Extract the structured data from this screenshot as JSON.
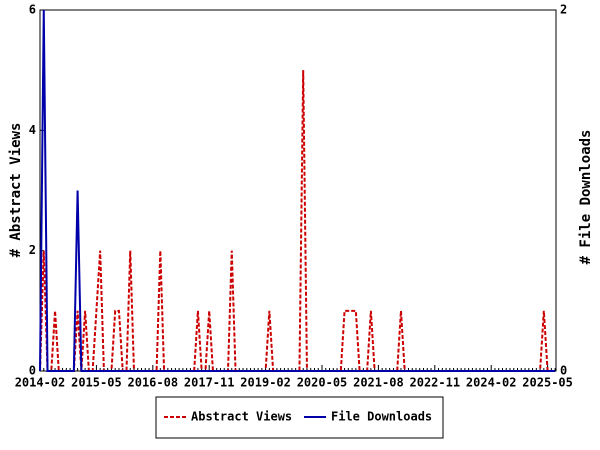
{
  "chart_data": {
    "type": "line",
    "y_label": "# Abstract Views",
    "y2_label": "# File Downloads",
    "categories": [
      "2014-02",
      null,
      null,
      null,
      null,
      null,
      null,
      null,
      null,
      null,
      null,
      null,
      null,
      null,
      null,
      "2015-05",
      null,
      null,
      null,
      null,
      null,
      null,
      null,
      null,
      null,
      null,
      null,
      null,
      null,
      null,
      "2016-08",
      null,
      null,
      null,
      null,
      null,
      null,
      null,
      null,
      null,
      null,
      null,
      null,
      null,
      null,
      "2017-11",
      null,
      null,
      null,
      null,
      null,
      null,
      null,
      null,
      null,
      null,
      null,
      null,
      null,
      null,
      "2019-02",
      null,
      null,
      null,
      null,
      null,
      null,
      null,
      null,
      null,
      null,
      null,
      null,
      null,
      null,
      "2020-05",
      null,
      null,
      null,
      null,
      null,
      null,
      null,
      null,
      null,
      null,
      null,
      null,
      null,
      null,
      "2021-08",
      null,
      null,
      null,
      null,
      null,
      null,
      null,
      null,
      null,
      null,
      null,
      null,
      null,
      null,
      "2022-11",
      null,
      null,
      null,
      null,
      null,
      null,
      null,
      null,
      null,
      null,
      null,
      null,
      null,
      null,
      "2024-02",
      null,
      null,
      null,
      null,
      null,
      null,
      null,
      null,
      null,
      null,
      null,
      null,
      null,
      null,
      "2025-05",
      null,
      null
    ],
    "series": [
      {
        "name": "Abstract Views",
        "color": "#cc0000",
        "dashed": true,
        "axis": "y",
        "values": [
          0,
          2,
          0,
          0,
          1,
          0,
          0,
          0,
          0,
          0,
          1,
          0,
          1,
          0,
          0,
          1,
          2,
          0,
          0,
          0,
          1,
          1,
          0,
          0,
          2,
          0,
          0,
          0,
          0,
          0,
          0,
          0,
          2,
          0,
          0,
          0,
          0,
          0,
          0,
          0,
          0,
          0,
          1,
          0,
          0,
          1,
          0,
          0,
          0,
          0,
          0,
          2,
          0,
          0,
          0,
          0,
          0,
          0,
          0,
          0,
          0,
          1,
          0,
          0,
          0,
          0,
          0,
          0,
          0,
          0,
          5,
          0,
          0,
          0,
          0,
          0,
          0,
          0,
          0,
          0,
          0,
          1,
          1,
          1,
          1,
          0,
          0,
          0,
          1,
          0,
          0,
          0,
          0,
          0,
          0,
          0,
          1,
          0,
          0,
          0,
          0,
          0,
          0,
          0,
          0,
          0,
          0,
          0,
          0,
          0,
          0,
          0,
          0,
          0,
          0,
          0,
          0,
          0,
          0,
          0,
          0,
          0,
          0,
          0,
          0,
          0,
          0,
          0,
          0,
          0,
          0,
          0,
          0,
          0,
          1,
          0,
          0,
          0
        ]
      },
      {
        "name": "File Downloads",
        "color": "#0000aa",
        "dashed": false,
        "axis": "y2",
        "values": [
          0,
          2,
          0,
          0,
          0,
          0,
          0,
          0,
          0,
          0,
          1,
          0,
          0,
          0,
          0,
          0,
          0,
          0,
          0,
          0,
          0,
          0,
          0,
          0,
          0,
          0,
          0,
          0,
          0,
          0,
          0,
          0,
          0,
          0,
          0,
          0,
          0,
          0,
          0,
          0,
          0,
          0,
          0,
          0,
          0,
          0,
          0,
          0,
          0,
          0,
          0,
          0,
          0,
          0,
          0,
          0,
          0,
          0,
          0,
          0,
          0,
          0,
          0,
          0,
          0,
          0,
          0,
          0,
          0,
          0,
          0,
          0,
          0,
          0,
          0,
          0,
          0,
          0,
          0,
          0,
          0,
          0,
          0,
          0,
          0,
          0,
          0,
          0,
          0,
          0,
          0,
          0,
          0,
          0,
          0,
          0,
          0,
          0,
          0,
          0,
          0,
          0,
          0,
          0,
          0,
          0,
          0,
          0,
          0,
          0,
          0,
          0,
          0,
          0,
          0,
          0,
          0,
          0,
          0,
          0,
          0,
          0,
          0,
          0,
          0,
          0,
          0,
          0,
          0,
          0,
          0,
          0,
          0,
          0,
          0,
          0,
          0,
          0
        ]
      }
    ],
    "ylim": [
      0,
      6
    ],
    "yticks": [
      0,
      2,
      4,
      6
    ],
    "y2lim": [
      0,
      2
    ],
    "y2ticks": [
      0,
      2
    ],
    "legend": "bottom"
  }
}
